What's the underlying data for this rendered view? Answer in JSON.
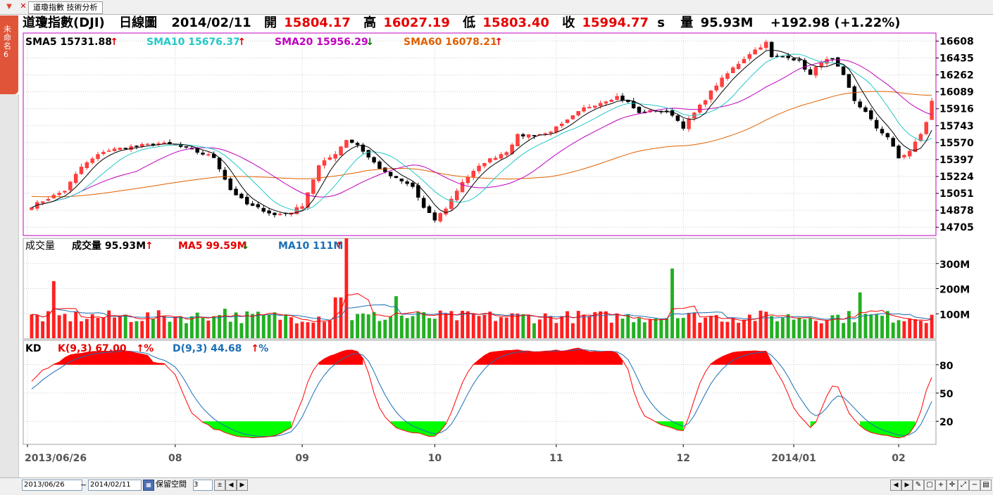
{
  "window": {
    "tab_label": "道瓊指數 技術分析",
    "side_tab_label": "未命名6"
  },
  "header": {
    "name": "道瓊指數(DJI)",
    "period": "日線圖",
    "date": "2014/02/11",
    "open_label": "開",
    "open": "15804.17",
    "high_label": "高",
    "high": "16027.19",
    "low_label": "低",
    "low": "15803.40",
    "close_label": "收",
    "close": "15994.77",
    "close_suffix": "s",
    "vol_label": "量",
    "vol": "95.93M",
    "change": "+192.98 (+1.22%)"
  },
  "colors": {
    "up": "#ff3030",
    "down": "#000000",
    "vol_up": "#ff2020",
    "vol_down": "#22b022",
    "sma5": "#000000",
    "sma10": "#25c8c8",
    "sma20": "#c000c0",
    "sma60": "#e06000",
    "ma5_vol": "#ff0000",
    "ma10_vol": "#1a6fb5",
    "k": "#ff0000",
    "d": "#1a6fb5",
    "k_fill_hi": "#ff0000",
    "k_fill_lo": "#00ff00",
    "price_frame": "#c000c0"
  },
  "chart_data": [
    {
      "type": "candlestick",
      "title": "道瓊指數(DJI) 日線圖",
      "legend": [
        {
          "label": "SMA5",
          "value": "15731.88",
          "arrow": "up"
        },
        {
          "label": "SMA10",
          "value": "15676.37",
          "arrow": "up"
        },
        {
          "label": "SMA20",
          "value": "15956.29",
          "arrow": "down"
        },
        {
          "label": "SMA60",
          "value": "16078.21",
          "arrow": "up"
        }
      ],
      "y_ticks": [
        "16608",
        "16435",
        "16262",
        "16089",
        "15916",
        "15743",
        "15570",
        "15397",
        "15224",
        "15051",
        "14878",
        "14705"
      ],
      "ylim": [
        14620,
        16690
      ],
      "anchors_close": [
        [
          0,
          14920
        ],
        [
          6,
          15080
        ],
        [
          9,
          15320
        ],
        [
          13,
          15480
        ],
        [
          17,
          15520
        ],
        [
          23,
          15560
        ],
        [
          26,
          15545
        ],
        [
          33,
          15420
        ],
        [
          36,
          15090
        ],
        [
          39,
          14940
        ],
        [
          42,
          14880
        ],
        [
          44,
          14830
        ],
        [
          47,
          14860
        ],
        [
          49,
          14930
        ],
        [
          52,
          15330
        ],
        [
          55,
          15460
        ],
        [
          57,
          15600
        ],
        [
          59,
          15550
        ],
        [
          61,
          15420
        ],
        [
          64,
          15260
        ],
        [
          66,
          15200
        ],
        [
          69,
          15120
        ],
        [
          71,
          14900
        ],
        [
          73,
          14780
        ],
        [
          75,
          14900
        ],
        [
          78,
          15170
        ],
        [
          82,
          15370
        ],
        [
          86,
          15480
        ],
        [
          88,
          15640
        ],
        [
          93,
          15660
        ],
        [
          96,
          15750
        ],
        [
          100,
          15920
        ],
        [
          103,
          15980
        ],
        [
          106,
          16040
        ],
        [
          108,
          15980
        ],
        [
          110,
          15870
        ],
        [
          113,
          15900
        ],
        [
          116,
          15860
        ],
        [
          118,
          15730
        ],
        [
          120,
          15870
        ],
        [
          124,
          16160
        ],
        [
          127,
          16330
        ],
        [
          130,
          16480
        ],
        [
          133,
          16590
        ],
        [
          134,
          16440
        ],
        [
          137,
          16450
        ],
        [
          139,
          16400
        ],
        [
          141,
          16260
        ],
        [
          143,
          16400
        ],
        [
          145,
          16420
        ],
        [
          147,
          16250
        ],
        [
          149,
          16000
        ],
        [
          151,
          15880
        ],
        [
          153,
          15720
        ],
        [
          155,
          15630
        ],
        [
          157,
          15410
        ],
        [
          159,
          15480
        ],
        [
          161,
          15660
        ],
        [
          162,
          15770
        ],
        [
          163,
          15995
        ]
      ],
      "sma60_start": 15020,
      "x_ticks": [
        "2013/06/26",
        "08",
        "09",
        "10",
        "11",
        "12",
        "2014/01",
        "02"
      ]
    },
    {
      "type": "bar",
      "title": "成交量",
      "legend": [
        {
          "label": "成交量",
          "value": "95.93M",
          "arrow": "up"
        },
        {
          "label": "MA5",
          "value": "99.59M",
          "arrow": "down"
        },
        {
          "label": "MA10",
          "value": "111M",
          "arrow": "up"
        }
      ],
      "y_ticks": [
        "300M",
        "200M",
        "100M"
      ],
      "ylim": [
        0,
        400
      ],
      "base_volume_m": 95,
      "spikes_m": [
        [
          4,
          230
        ],
        [
          33,
          90
        ],
        [
          35,
          120
        ],
        [
          55,
          165
        ],
        [
          56,
          165
        ],
        [
          57,
          400
        ],
        [
          66,
          170
        ],
        [
          116,
          280
        ],
        [
          150,
          185
        ]
      ],
      "x_ticks": [
        "2013/06/26",
        "08",
        "09",
        "10",
        "11",
        "12",
        "2014/01",
        "02"
      ]
    },
    {
      "type": "line",
      "title": "KD",
      "legend": [
        {
          "label": "K(9,3)",
          "value": "67.00",
          "arrow": "up",
          "suffix": "%"
        },
        {
          "label": "D(9,3)",
          "value": "44.68",
          "arrow": "up",
          "suffix": "%"
        }
      ],
      "y_ticks": [
        "80",
        "50",
        "20"
      ],
      "ylim": [
        0,
        100
      ],
      "thresholds": [
        20,
        80
      ],
      "x_ticks": [
        "2013/06/26",
        "08",
        "09",
        "10",
        "11",
        "12",
        "2014/01",
        "02"
      ]
    }
  ],
  "footer": {
    "start_date": "2013/06/26",
    "tilde": "~",
    "end_date": "2014/02/11",
    "reserve_label": "保留空間",
    "reserve_value": "3"
  }
}
